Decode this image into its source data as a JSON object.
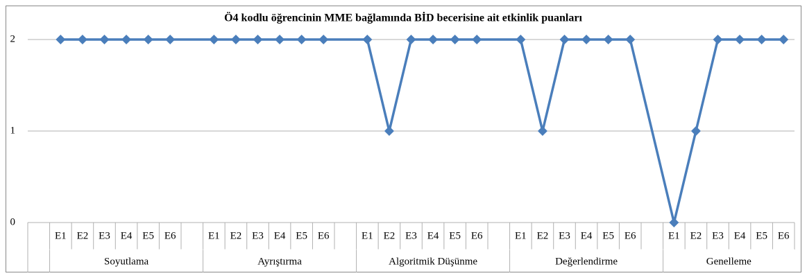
{
  "chart_data": {
    "type": "line",
    "title": "Ö4 kodlu öğrencinin MME bağlamında BİD becerisine ait etkinlik puanları",
    "groups": [
      {
        "name": "Soyutlama",
        "categories": [
          "E1",
          "E2",
          "E3",
          "E4",
          "E5",
          "E6"
        ]
      },
      {
        "name": "Ayrıştırma",
        "categories": [
          "E1",
          "E2",
          "E3",
          "E4",
          "E5",
          "E6"
        ]
      },
      {
        "name": "Algoritmik Düşünme",
        "categories": [
          "E1",
          "E2",
          "E3",
          "E4",
          "E5",
          "E6"
        ]
      },
      {
        "name": "Değerlendirme",
        "categories": [
          "E1",
          "E2",
          "E3",
          "E4",
          "E5",
          "E6"
        ]
      },
      {
        "name": "Genelleme",
        "categories": [
          "E1",
          "E2",
          "E3",
          "E4",
          "E5",
          "E6"
        ]
      }
    ],
    "series": [
      {
        "color": "#4a7ebb",
        "values": [
          2,
          2,
          2,
          2,
          2,
          2,
          2,
          2,
          2,
          2,
          2,
          2,
          2,
          1,
          2,
          2,
          2,
          2,
          2,
          1,
          2,
          2,
          2,
          2,
          0,
          1,
          2,
          2,
          2,
          2
        ]
      }
    ],
    "ylim": [
      0,
      2
    ],
    "yticks": [
      0,
      1,
      2
    ],
    "grid": true
  }
}
